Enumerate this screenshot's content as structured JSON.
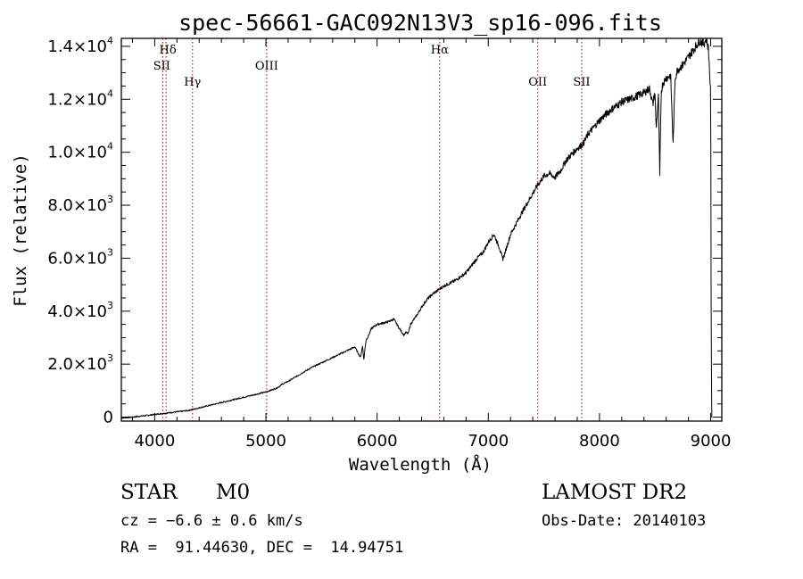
{
  "chart_data": {
    "type": "line",
    "title": "spec-56661-GAC092N13V3_sp16-096.fits",
    "xlabel": "Wavelength (Å)",
    "ylabel": "Flux (relative)",
    "xlim": [
      3700,
      9100
    ],
    "ylim": [
      -150,
      14300
    ],
    "grid": false,
    "x_ticks": [
      {
        "value": 4000,
        "label": "4000"
      },
      {
        "value": 5000,
        "label": "5000"
      },
      {
        "value": 6000,
        "label": "6000"
      },
      {
        "value": 7000,
        "label": "7000"
      },
      {
        "value": 8000,
        "label": "8000"
      },
      {
        "value": 9000,
        "label": "9000"
      }
    ],
    "y_ticks": [
      {
        "value": 0,
        "mant": "0",
        "exp": ""
      },
      {
        "value": 2000,
        "mant": "2.0×10",
        "exp": "3"
      },
      {
        "value": 4000,
        "mant": "4.0×10",
        "exp": "3"
      },
      {
        "value": 6000,
        "mant": "6.0×10",
        "exp": "3"
      },
      {
        "value": 8000,
        "mant": "8.0×10",
        "exp": "3"
      },
      {
        "value": 10000,
        "mant": "1.0×10",
        "exp": "4"
      },
      {
        "value": 12000,
        "mant": "1.2×10",
        "exp": "4"
      },
      {
        "value": 14000,
        "mant": "1.4×10",
        "exp": "4"
      }
    ],
    "spectral_lines": [
      {
        "name": "Hδ",
        "x": 4102
      },
      {
        "name": "SII",
        "x": 4072
      },
      {
        "name": "Hγ",
        "x": 4340
      },
      {
        "name": "OIII",
        "x": 5007
      },
      {
        "name": "Hα",
        "x": 6563
      },
      {
        "name": "OII",
        "x": 7445
      },
      {
        "name": "SII",
        "x": 7840
      }
    ],
    "series": [
      {
        "x": [
          3700,
          3800,
          3900,
          4000,
          4100,
          4200,
          4300,
          4400,
          4500,
          4600,
          4700,
          4800,
          4900,
          5000,
          5100,
          5150,
          5200,
          5300,
          5400,
          5500,
          5600,
          5700,
          5800,
          5850,
          5870,
          5880,
          5900,
          5920,
          5950,
          6000,
          6100,
          6150,
          6200,
          6240,
          6260,
          6280,
          6300,
          6350,
          6400,
          6450,
          6500,
          6550,
          6600,
          6700,
          6800,
          6900,
          6950,
          7000,
          7050,
          7100,
          7130,
          7150,
          7200,
          7300,
          7400,
          7450,
          7500,
          7550,
          7600,
          7650,
          7700,
          7800,
          7850,
          7900,
          8000,
          8100,
          8200,
          8300,
          8400,
          8450,
          8480,
          8498,
          8510,
          8530,
          8542,
          8555,
          8570,
          8600,
          8640,
          8662,
          8680,
          8700,
          8750,
          8800,
          8850,
          8900,
          8940,
          8960,
          8980,
          9000,
          9005,
          9010
        ],
        "values": [
          -30,
          0,
          50,
          100,
          150,
          200,
          250,
          350,
          450,
          550,
          650,
          750,
          850,
          950,
          1100,
          1250,
          1350,
          1600,
          1850,
          2050,
          2250,
          2450,
          2650,
          2250,
          2700,
          2150,
          2900,
          3050,
          3350,
          3500,
          3600,
          3700,
          3350,
          3100,
          3200,
          3150,
          3500,
          3800,
          4150,
          4450,
          4650,
          4800,
          4950,
          5150,
          5450,
          6000,
          6200,
          6600,
          6900,
          6400,
          5950,
          6200,
          6900,
          7700,
          8450,
          8800,
          9100,
          9200,
          9050,
          9300,
          9700,
          10150,
          10300,
          10700,
          11200,
          11600,
          11900,
          12050,
          12250,
          12400,
          11800,
          12300,
          10900,
          12100,
          9100,
          12300,
          12600,
          12800,
          12900,
          10300,
          12800,
          13100,
          13300,
          13600,
          13900,
          14200,
          14100,
          14300,
          13900,
          12200,
          3000,
          0
        ]
      }
    ]
  },
  "info": {
    "class_label": "STAR",
    "subclass_label": "M0",
    "survey": "LAMOST DR2",
    "cz": "cz = −6.6 ± 0.6 km/s",
    "obs_date": "Obs-Date: 20140103",
    "radec": "RA =  91.44630, DEC =  14.94751"
  }
}
